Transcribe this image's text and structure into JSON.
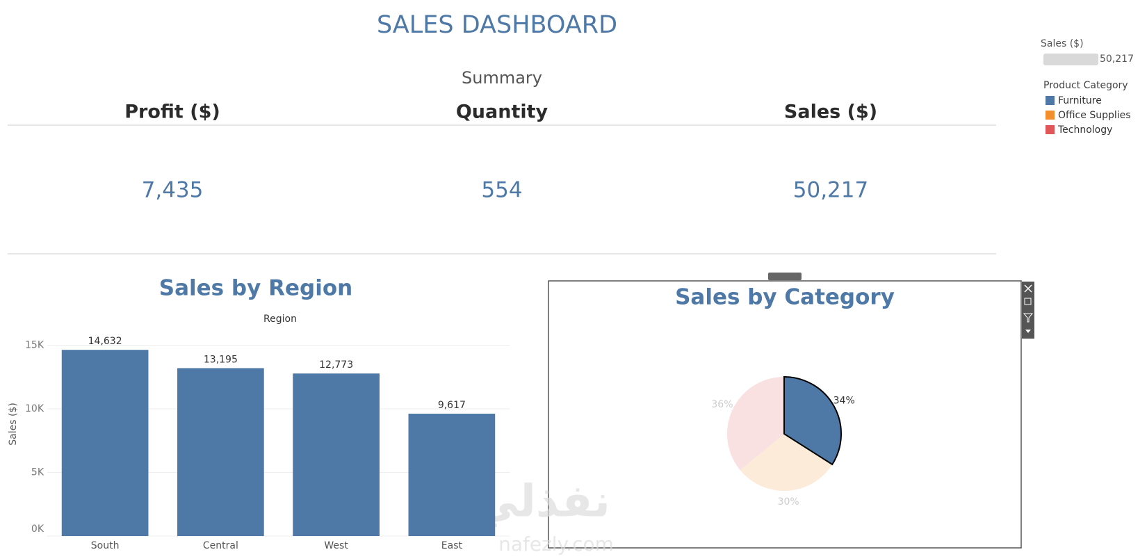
{
  "header": {
    "title": "SALES DASHBOARD"
  },
  "summary": {
    "title": "Summary",
    "headers": [
      "Profit ($)",
      "Quantity",
      "Sales ($)"
    ],
    "values": [
      "7,435",
      "554",
      "50,217"
    ]
  },
  "legend": {
    "sales_title": "Sales ($)",
    "sales_value": {
      "value": 50217,
      "label": "50,217"
    },
    "category_title": "Product Category"
  },
  "watermark": {
    "arabic": "نفذلي",
    "latin": "nafezly.com"
  },
  "chart_data": [
    {
      "type": "bar",
      "title": "Sales by Region",
      "x_label": "Region",
      "y_label": "Sales ($)",
      "categories": [
        "South",
        "Central",
        "West",
        "East"
      ],
      "values": [
        14632,
        13195,
        12773,
        9617
      ],
      "value_labels": [
        "14,632",
        "13,195",
        "12,773",
        "9,617"
      ],
      "color": "#4e79a7",
      "ylim": [
        0,
        16500
      ],
      "yticks": [
        {
          "value": 0,
          "label": "0K"
        },
        {
          "value": 5000,
          "label": "5K"
        },
        {
          "value": 10000,
          "label": "10K"
        },
        {
          "value": 15000,
          "label": "15K"
        }
      ],
      "grid": true
    },
    {
      "type": "pie",
      "title": "Sales by Category",
      "categories": [
        "Furniture",
        "Office Supplies",
        "Technology"
      ],
      "values": [
        34,
        30,
        36
      ],
      "value_labels": [
        "34%",
        "30%",
        "36%"
      ],
      "colors": [
        "#4e79a7",
        "#f28e2b",
        "#e15759"
      ],
      "highlight": "Furniture"
    }
  ]
}
